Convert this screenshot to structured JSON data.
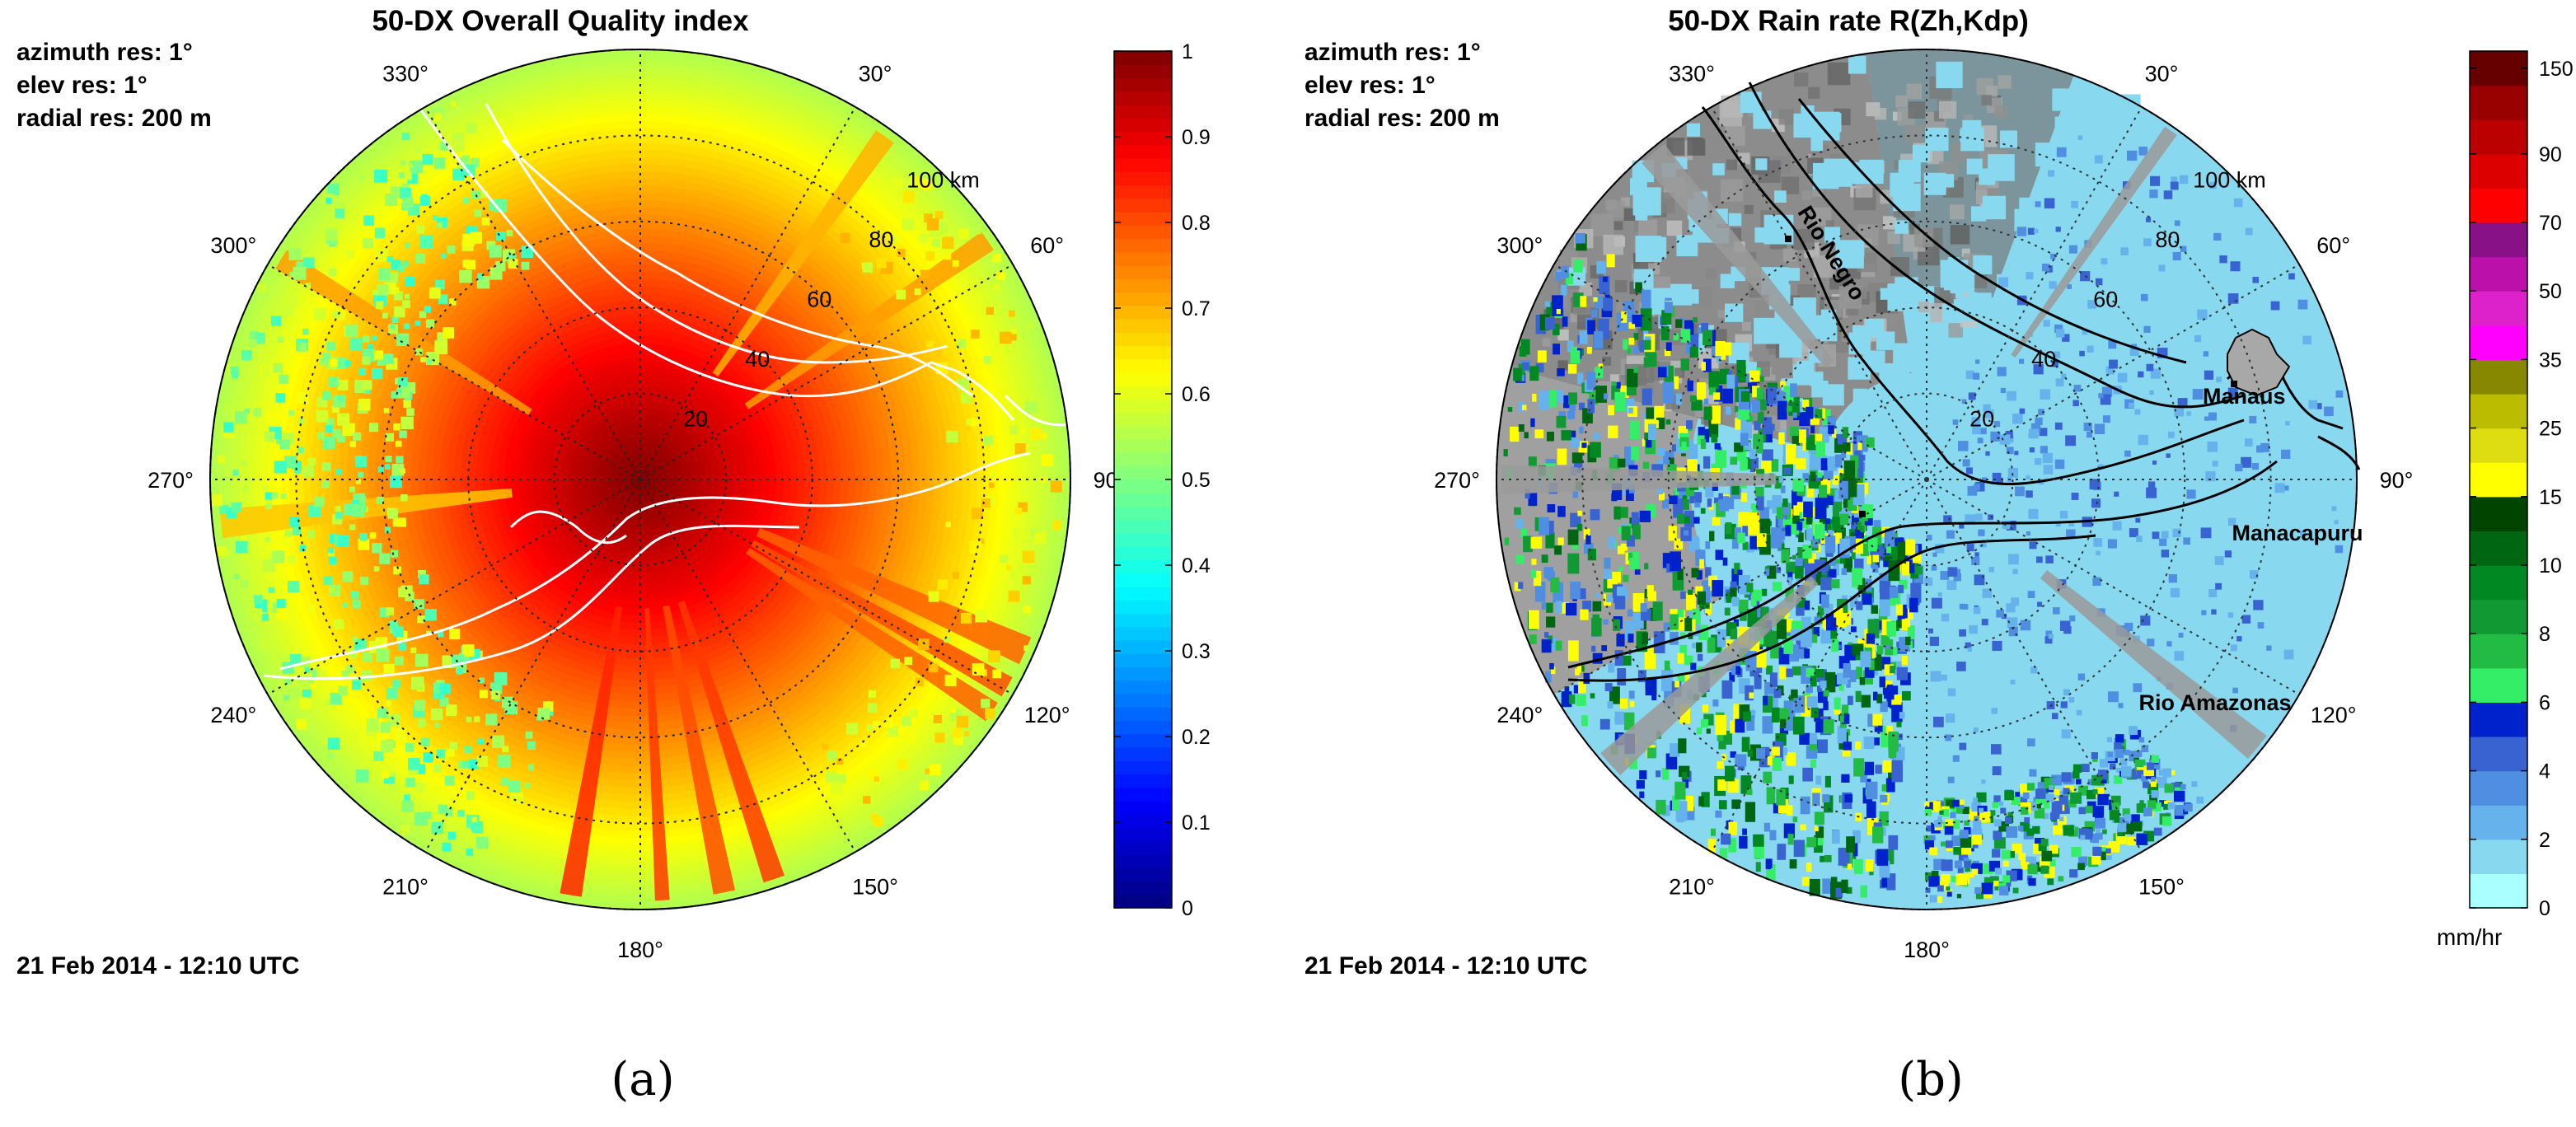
{
  "panels": [
    {
      "id": "a",
      "title": "50-DX Overall Quality index",
      "meta": [
        "azimuth res: 1°",
        "elev res: 1°",
        "radial res: 200 m"
      ],
      "date": "21 Feb 2014 - 12:10 UTC",
      "caption": "(a)"
    },
    {
      "id": "b",
      "title": "50-DX Rain rate R(Zh,Kdp)",
      "meta": [
        "azimuth res: 1°",
        "elev res: 1°",
        "radial res: 200 m"
      ],
      "date": "21 Feb 2014 - 12:10 UTC",
      "caption": "(b)",
      "places": [
        "Rio Negro",
        "Manaus",
        "Manacapuru",
        "Rio Amazonas"
      ]
    }
  ],
  "chart_data": [
    {
      "type": "heatmap",
      "projection": "polar",
      "title": "50-DX Overall Quality index",
      "azimuth_labels": [
        "30°",
        "60°",
        "90°",
        "120°",
        "150°",
        "180°",
        "210°",
        "240°",
        "270°",
        "300°",
        "330°"
      ],
      "range_labels": [
        "20",
        "40",
        "60",
        "80",
        "100 km"
      ],
      "range_max_km": 100,
      "grid": true,
      "colorbar": {
        "colormap": "jet",
        "range": [
          0,
          1
        ],
        "ticks": [
          "0",
          "0.1",
          "0.2",
          "0.3",
          "0.4",
          "0.5",
          "0.6",
          "0.7",
          "0.8",
          "0.9",
          "1"
        ],
        "position": "right"
      },
      "field_summary": {
        "value_at_center": 1.0,
        "value_near_100km": 0.55
      }
    },
    {
      "type": "heatmap",
      "projection": "polar",
      "title": "50-DX Rain rate R(Zh,Kdp)",
      "azimuth_labels": [
        "30°",
        "60°",
        "90°",
        "120°",
        "150°",
        "180°",
        "210°",
        "240°",
        "270°",
        "300°",
        "330°"
      ],
      "range_labels": [
        "20",
        "40",
        "60",
        "80",
        "100 km"
      ],
      "range_max_km": 100,
      "grid": true,
      "colorbar": {
        "unit": "mm/hr",
        "ticks": [
          "0",
          "2",
          "4",
          "6",
          "8",
          "10",
          "15",
          "25",
          "35",
          "50",
          "70",
          "90",
          "150"
        ],
        "position": "right",
        "colors": [
          "#aaffff",
          "#88d8f0",
          "#66b2ec",
          "#4f8ee0",
          "#3a63d2",
          "#0022cc",
          "#33ee66",
          "#22bb44",
          "#119933",
          "#008822",
          "#006611",
          "#004400",
          "#ffff00",
          "#dddd11",
          "#bbbb00",
          "#888800",
          "#ff00ff",
          "#dd22cc",
          "#bb11aa",
          "#881188",
          "#ff0000",
          "#dd0000",
          "#bb0000",
          "#990000",
          "#660000"
        ]
      },
      "annotations": [
        "Rio Negro",
        "Manaus",
        "Manacapuru",
        "Rio Amazonas"
      ]
    }
  ]
}
